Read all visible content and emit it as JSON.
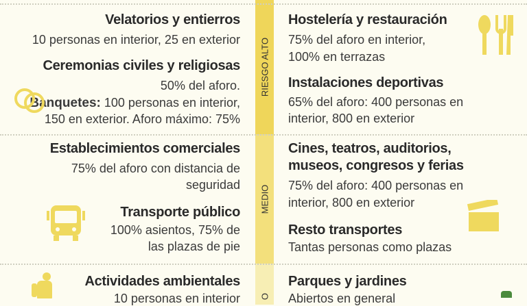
{
  "bands": {
    "high": "RIESGO ALTO",
    "medium": "MEDIO",
    "low": "O"
  },
  "colors": {
    "high": "#efd65a",
    "medium": "#f3e07c",
    "low": "#f7eeb4",
    "icon": "#efd95e"
  },
  "left": {
    "velatorios": {
      "title": "Velatorios y entierros",
      "text": "10 personas en interior, 25 en exterior"
    },
    "ceremonias": {
      "title": "Ceremonias civiles y religiosas",
      "text": "50% del aforo."
    },
    "banquetes": {
      "title": "Banquetes:",
      "text1": " 100 personas en interior,",
      "text2": "150 en exterior. Aforo máximo: 75%"
    },
    "comercios": {
      "title": "Establecimientos comerciales",
      "text1": "75% del aforo con distancia de",
      "text2": "seguridad"
    },
    "transporte": {
      "title": "Transporte público",
      "text1": "100% asientos, 75% de",
      "text2": "las plazas de pie"
    },
    "ambientales": {
      "title": "Actividades ambientales",
      "text": "10 personas en interior"
    }
  },
  "right": {
    "hosteleria": {
      "title": "Hostelería y restauración",
      "text1": "75% del aforo en interior,",
      "text2": "100% en terrazas"
    },
    "deportivas": {
      "title": "Instalaciones deportivas",
      "text1": "65% del aforo: 400 personas en",
      "text2": "interior, 800 en exterior"
    },
    "cines": {
      "title1": "Cines, teatros, auditorios,",
      "title2": "museos, congresos y ferias",
      "text1": "75% del aforo: 400 personas en",
      "text2": "interior, 800 en exterior"
    },
    "resto": {
      "title": "Resto transportes",
      "text": "Tantas personas como plazas"
    },
    "parques": {
      "title": "Parques y jardines",
      "text": "Abiertos en general"
    }
  }
}
